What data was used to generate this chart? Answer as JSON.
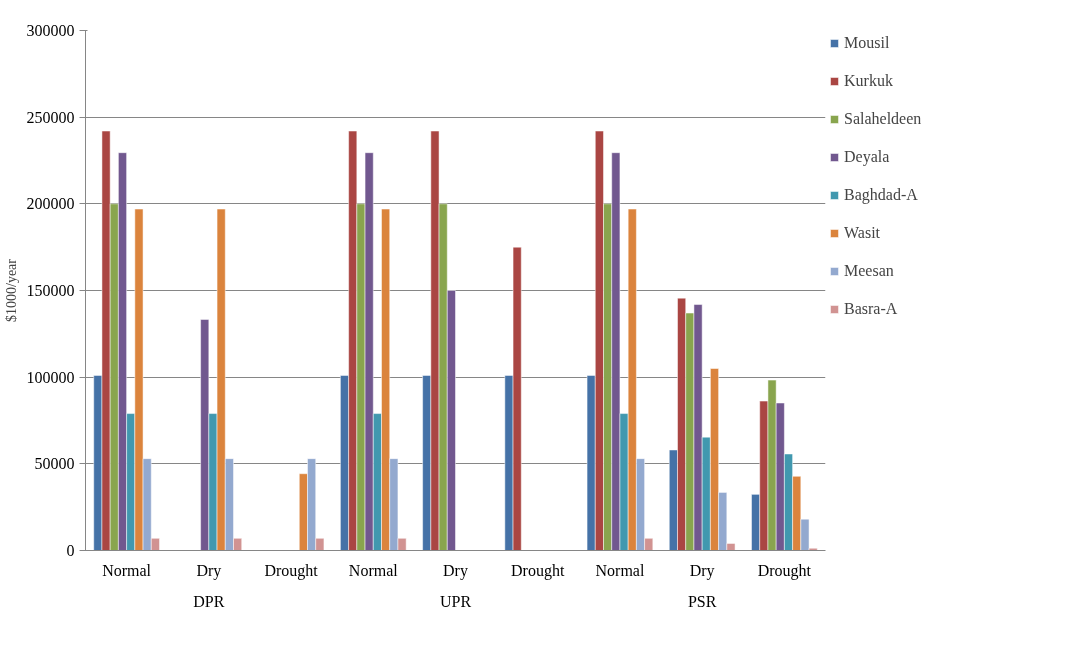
{
  "chart_data": {
    "type": "bar",
    "ylabel": "$1000/year",
    "categories": [
      "Normal",
      "Dry",
      "Drought",
      "Normal",
      "Dry",
      "Drought",
      "Normal",
      "Dry",
      "Drought"
    ],
    "annotations": [
      "DPR",
      "UPR",
      "PSR"
    ],
    "ylim": [
      0,
      300000
    ],
    "yticks": [
      0,
      50000,
      100000,
      150000,
      200000,
      250000,
      300000
    ],
    "grid": "y",
    "legend": "right",
    "series": [
      {
        "name": "Mousil",
        "color": "#4572a7",
        "values": [
          101000,
          null,
          null,
          101000,
          101000,
          101000,
          101000,
          58000,
          32400
        ]
      },
      {
        "name": "Kurkuk",
        "color": "#aa4643",
        "values": [
          242000,
          null,
          null,
          242000,
          242000,
          175000,
          242000,
          145600,
          86200
        ]
      },
      {
        "name": "Salaheldeen",
        "color": "#89a54e",
        "values": [
          200000,
          null,
          null,
          200000,
          200000,
          null,
          200000,
          137000,
          98300
        ]
      },
      {
        "name": "Deyala",
        "color": "#71588f",
        "values": [
          229500,
          133300,
          null,
          229500,
          150000,
          null,
          229500,
          141900,
          85100
        ]
      },
      {
        "name": "Baghdad-A",
        "color": "#4198af",
        "values": [
          79000,
          79000,
          null,
          79000,
          null,
          null,
          79000,
          65400,
          55700
        ]
      },
      {
        "name": "Wasit",
        "color": "#db843d",
        "values": [
          197000,
          197000,
          44300,
          197000,
          null,
          null,
          197000,
          105000,
          42800
        ]
      },
      {
        "name": "Meesan",
        "color": "#93a9cf",
        "values": [
          53000,
          53000,
          53000,
          53000,
          null,
          null,
          53000,
          33500,
          18100
        ]
      },
      {
        "name": "Basra-A",
        "color": "#d19392",
        "values": [
          7000,
          7000,
          7000,
          7000,
          null,
          null,
          7000,
          4100,
          1300
        ]
      }
    ]
  }
}
